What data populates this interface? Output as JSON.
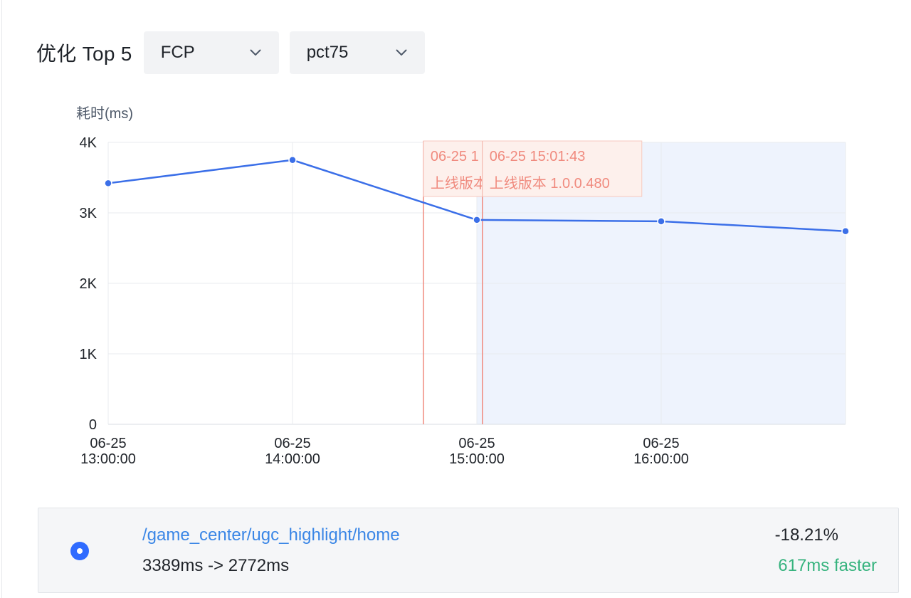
{
  "header": {
    "title": "优化 Top 5",
    "metric_select": {
      "value": "FCP",
      "icon": "chevron-down-icon"
    },
    "percentile_select": {
      "value": "pct75",
      "icon": "chevron-down-icon"
    }
  },
  "chart_data": {
    "type": "line",
    "ylabel": "耗时(ms)",
    "ylim": [
      0,
      4000
    ],
    "y_ticks": [
      "0",
      "1K",
      "2K",
      "3K",
      "4K"
    ],
    "x_ticks": [
      [
        "06-25",
        "13:00:00"
      ],
      [
        "06-25",
        "14:00:00"
      ],
      [
        "06-25",
        "15:00:00"
      ],
      [
        "06-25",
        "16:00:00"
      ]
    ],
    "x_hours": [
      13,
      14,
      15,
      16,
      17
    ],
    "series": [
      {
        "values": [
          3420,
          3750,
          2900,
          2880,
          2740
        ],
        "color": "#3b6fe8"
      }
    ],
    "annotations": [
      {
        "time_hours": 14.71,
        "line1": "06-25 1",
        "line2": "上线版本",
        "truncated": true
      },
      {
        "time_hours": 15.03,
        "line1": "06-25 15:01:43",
        "line2": "上线版本 1.0.0.480",
        "truncated": false
      }
    ],
    "highlight_range_hours": [
      15.0,
      17.0
    ],
    "grid": true,
    "colors": {
      "line": "#3b6fe8",
      "annotation": "#f08a7e",
      "annotation_bg": "#fdf0ec",
      "highlight": "#eef3fd"
    }
  },
  "result": {
    "path": "/game_center/ugc_highlight/home",
    "range": "3389ms -> 2772ms",
    "change": "-18.21%",
    "faster": "617ms faster",
    "colors": {
      "radio": "#2f6bff",
      "link": "#3a86e6",
      "faster": "#36b37e"
    }
  }
}
